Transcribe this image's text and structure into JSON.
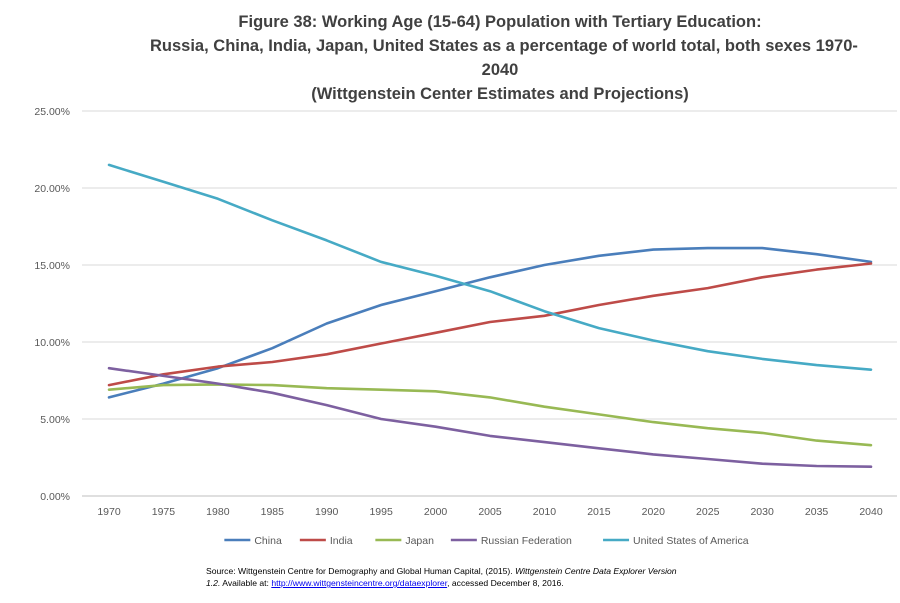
{
  "title_lines": [
    "Figure 38: Working Age (15-64) Population with Tertiary Education:",
    "Russia, China, India, Japan, United States as a percentage of world total, both sexes 1970-",
    "2040",
    "(Wittgenstein Center Estimates and Projections)"
  ],
  "source": {
    "prefix": "Source: Wittgenstein Centre for Demography and Global Human Capital, (2015). ",
    "italic_1": "Wittgenstein Centre Data Explorer Version",
    "italic_2": "1.2.",
    "mid": " Available at: ",
    "link": "http://www.wittgensteincentre.org/dataexplorer",
    "suffix": ", accessed December 8, 2016."
  },
  "chart_data": {
    "type": "line",
    "x": [
      "1970",
      "1975",
      "1980",
      "1985",
      "1990",
      "1995",
      "2000",
      "2005",
      "2010",
      "2015",
      "2020",
      "2025",
      "2030",
      "2035",
      "2040"
    ],
    "y_ticks": [
      "0.00%",
      "5.00%",
      "10.00%",
      "15.00%",
      "20.00%",
      "25.00%"
    ],
    "ylim": [
      0,
      25
    ],
    "grid": true,
    "legend_position": "bottom",
    "series": [
      {
        "name": "China",
        "color": "#4a7ebb",
        "values": [
          6.4,
          7.3,
          8.3,
          9.6,
          11.2,
          12.4,
          13.3,
          14.2,
          15.0,
          15.6,
          16.0,
          16.1,
          16.1,
          15.7,
          15.2
        ]
      },
      {
        "name": "India",
        "color": "#be4b48",
        "values": [
          7.2,
          7.9,
          8.4,
          8.7,
          9.2,
          9.9,
          10.6,
          11.3,
          11.7,
          12.4,
          13.0,
          13.5,
          14.2,
          14.7,
          15.1
        ]
      },
      {
        "name": "Japan",
        "color": "#98b954",
        "values": [
          6.9,
          7.2,
          7.25,
          7.2,
          7.0,
          6.9,
          6.8,
          6.4,
          5.8,
          5.3,
          4.8,
          4.4,
          4.1,
          3.6,
          3.3
        ]
      },
      {
        "name": "Russian Federation",
        "color": "#7d60a0",
        "values": [
          8.3,
          7.8,
          7.3,
          6.7,
          5.9,
          5.0,
          4.5,
          3.9,
          3.5,
          3.1,
          2.7,
          2.4,
          2.1,
          1.95,
          1.9
        ]
      },
      {
        "name": "United States of America",
        "color": "#46aac5",
        "values": [
          21.5,
          20.4,
          19.3,
          17.9,
          16.6,
          15.2,
          14.3,
          13.3,
          12.0,
          10.9,
          10.1,
          9.4,
          8.9,
          8.5,
          8.2
        ]
      }
    ]
  }
}
